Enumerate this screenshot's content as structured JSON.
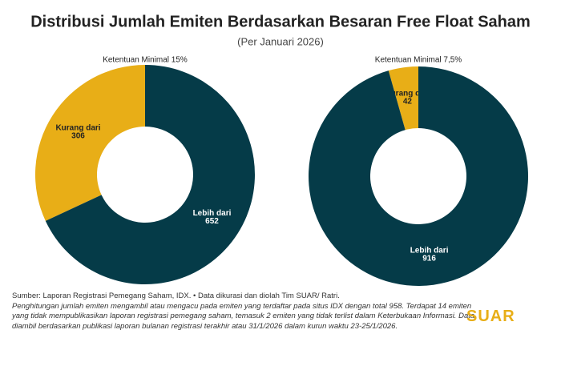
{
  "title": "Distribusi Jumlah Emiten Berdasarkan Besaran Free Float Saham",
  "subtitle": "(Per Januari 2026)",
  "chart_data": [
    {
      "type": "donut",
      "title": "Ketentuan Minimal 15%",
      "categories": [
        "Kurang dari",
        "Lebih dari"
      ],
      "values": [
        306,
        652
      ],
      "colors": [
        "#e8ae17",
        "#053b48"
      ]
    },
    {
      "type": "donut",
      "title": "Ketentuan Minimal 7,5%",
      "categories": [
        "Kurang dari",
        "Lebih dari"
      ],
      "values": [
        42,
        916
      ],
      "colors": [
        "#e8ae17",
        "#053b48"
      ]
    }
  ],
  "footer": {
    "source": "Sumber: Laporan Registrasi Pemegang Saham, IDX. • Data dikurasi dan diolah Tim SUAR/ Ratri.",
    "note": "Penghitungan jumlah emiten mengambil atau mengacu pada emiten yang terdaftar pada situs IDX dengan total 958. Terdapat 14 emiten yang tidak mempublikasikan laporan registrasi pemegang saham, temasuk 2 emiten yang tidak terlist dalam Keterbukaan Informasi. Data diambil berdasarkan publikasi laporan bulanan registrasi terakhir atau 31/1/2026 dalam kurun waktu 23-25/1/2026.",
    "logo": "SUAR"
  }
}
